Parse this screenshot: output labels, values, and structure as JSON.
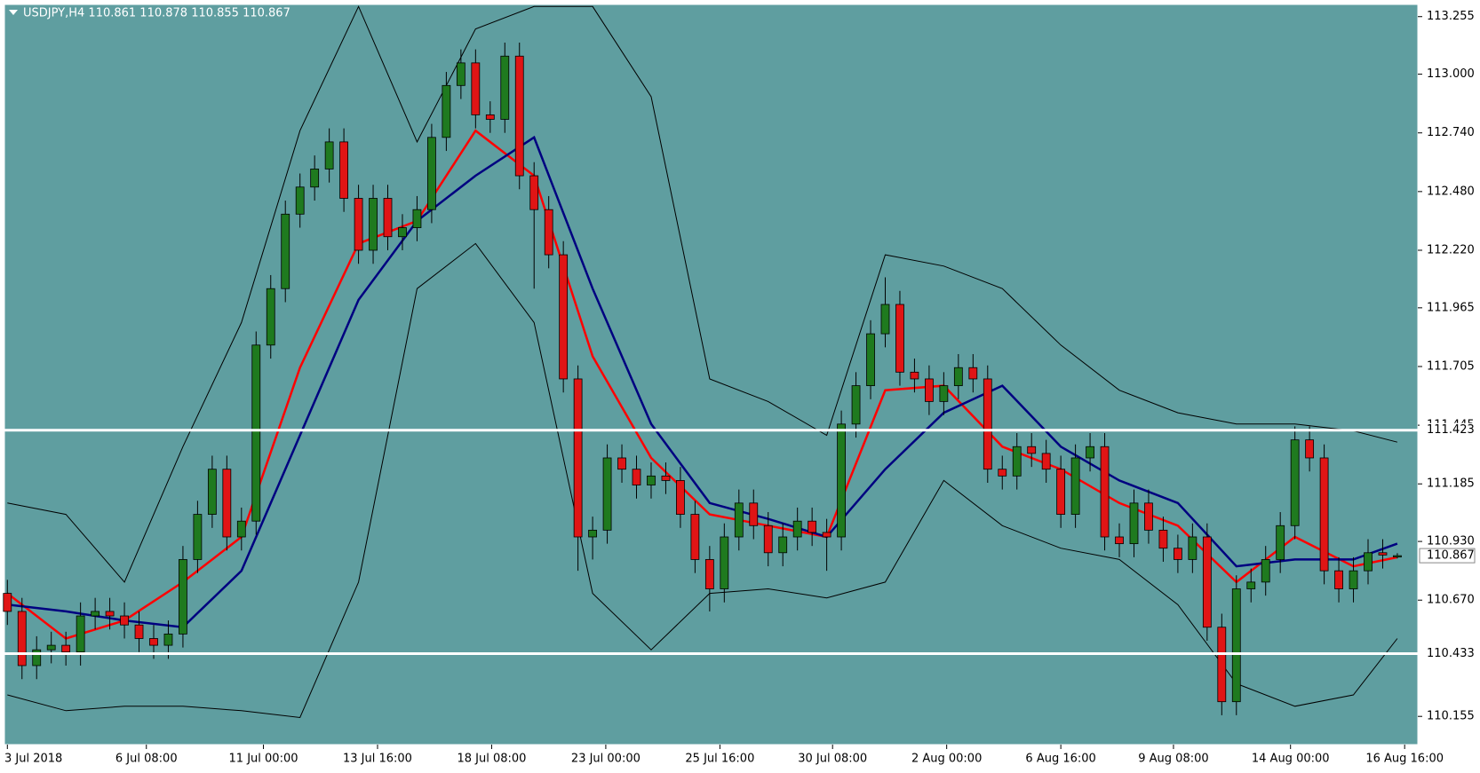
{
  "chart_data": {
    "type": "candlestick",
    "title": "USDJPY,H4  110.861 110.878 110.855 110.867",
    "open": [
      110.7,
      110.62,
      110.38,
      110.45,
      110.47,
      110.44,
      110.6,
      110.62,
      110.6,
      110.56,
      110.5,
      110.47,
      110.52,
      110.85,
      111.05,
      111.25,
      110.95,
      111.02,
      111.8,
      112.05,
      112.38,
      112.5,
      112.58,
      112.7,
      112.45,
      112.22,
      112.45,
      112.28,
      112.32,
      112.4,
      112.72,
      112.95,
      113.05,
      112.82,
      112.8,
      113.08,
      112.55,
      112.4,
      112.2,
      111.65,
      110.95,
      110.98,
      111.3,
      111.25,
      111.18,
      111.22,
      111.2,
      111.05,
      110.85,
      110.72,
      110.95,
      111.1,
      111.0,
      110.88,
      110.95,
      111.02,
      110.97,
      110.95,
      111.45,
      111.62,
      111.85,
      111.98,
      111.68,
      111.65,
      111.55,
      111.62,
      111.7,
      111.65,
      111.25,
      111.22,
      111.35,
      111.32,
      111.25,
      111.05,
      111.3,
      111.35,
      110.95,
      110.92,
      111.1,
      110.98,
      110.9,
      110.85,
      110.95,
      110.55,
      110.22,
      110.72,
      110.75,
      110.85,
      111.0,
      111.38,
      111.3,
      110.8,
      110.72,
      110.8,
      110.88,
      110.861
    ],
    "high": [
      110.76,
      110.68,
      110.51,
      110.53,
      110.53,
      110.66,
      110.68,
      110.68,
      110.66,
      110.62,
      110.56,
      110.58,
      110.91,
      111.11,
      111.31,
      111.31,
      111.08,
      111.86,
      112.11,
      112.44,
      112.56,
      112.64,
      112.76,
      112.76,
      112.51,
      112.51,
      112.51,
      112.38,
      112.46,
      112.78,
      113.01,
      113.11,
      113.11,
      112.88,
      113.14,
      113.14,
      112.61,
      112.46,
      112.26,
      111.71,
      111.04,
      111.36,
      111.36,
      111.31,
      111.28,
      111.28,
      111.26,
      111.11,
      110.91,
      111.01,
      111.16,
      111.16,
      111.06,
      111.01,
      111.08,
      111.08,
      111.03,
      111.51,
      111.68,
      111.91,
      112.1,
      112.04,
      111.74,
      111.71,
      111.68,
      111.76,
      111.76,
      111.71,
      111.31,
      111.41,
      111.41,
      111.38,
      111.31,
      111.36,
      111.41,
      111.41,
      111.01,
      111.16,
      111.16,
      111.04,
      110.96,
      111.01,
      111.01,
      110.61,
      110.78,
      110.81,
      110.91,
      111.06,
      111.44,
      111.44,
      111.36,
      110.86,
      110.86,
      110.94,
      110.94,
      110.878
    ],
    "low": [
      110.56,
      110.32,
      110.32,
      110.39,
      110.38,
      110.38,
      110.54,
      110.54,
      110.5,
      110.44,
      110.41,
      110.41,
      110.46,
      110.79,
      110.99,
      110.89,
      110.89,
      110.96,
      111.74,
      111.99,
      112.32,
      112.44,
      112.52,
      112.39,
      112.16,
      112.16,
      112.22,
      112.22,
      112.26,
      112.34,
      112.66,
      112.89,
      112.76,
      112.74,
      112.74,
      112.49,
      112.05,
      112.14,
      111.59,
      110.8,
      110.85,
      110.92,
      111.19,
      111.12,
      111.12,
      111.14,
      110.99,
      110.79,
      110.62,
      110.66,
      110.89,
      110.94,
      110.82,
      110.82,
      110.89,
      110.91,
      110.8,
      110.89,
      111.39,
      111.56,
      111.79,
      111.62,
      111.59,
      111.49,
      111.49,
      111.56,
      111.59,
      111.19,
      111.16,
      111.16,
      111.26,
      111.19,
      110.99,
      110.99,
      111.24,
      110.89,
      110.86,
      110.86,
      110.92,
      110.84,
      110.79,
      110.79,
      110.49,
      110.16,
      110.16,
      110.66,
      110.69,
      110.79,
      110.94,
      111.24,
      110.74,
      110.66,
      110.66,
      110.74,
      110.81,
      110.855
    ],
    "close": [
      110.62,
      110.38,
      110.45,
      110.47,
      110.44,
      110.6,
      110.62,
      110.6,
      110.56,
      110.5,
      110.47,
      110.52,
      110.85,
      111.05,
      111.25,
      110.95,
      111.02,
      111.8,
      112.05,
      112.38,
      112.5,
      112.58,
      112.7,
      112.45,
      112.22,
      112.45,
      112.28,
      112.32,
      112.4,
      112.72,
      112.95,
      113.05,
      112.82,
      112.8,
      113.08,
      112.55,
      112.4,
      112.2,
      111.65,
      110.95,
      110.98,
      111.3,
      111.25,
      111.18,
      111.22,
      111.2,
      111.05,
      110.85,
      110.72,
      110.95,
      111.1,
      111.0,
      110.88,
      110.95,
      111.02,
      110.97,
      110.95,
      111.45,
      111.62,
      111.85,
      111.98,
      111.68,
      111.65,
      111.55,
      111.62,
      111.7,
      111.65,
      111.25,
      111.22,
      111.35,
      111.32,
      111.25,
      111.05,
      111.3,
      111.35,
      110.95,
      110.92,
      111.1,
      110.98,
      110.9,
      110.85,
      110.95,
      110.55,
      110.22,
      110.72,
      110.75,
      110.85,
      111.0,
      111.38,
      111.3,
      110.8,
      110.72,
      110.8,
      110.88,
      110.87,
      110.867
    ],
    "up_color": "#1f7a1f",
    "down_color": "#e01515",
    "background": "#5f9ea0",
    "line_x": [
      0,
      4,
      8,
      12,
      16,
      20,
      24,
      28,
      32,
      36,
      40,
      44,
      48,
      52,
      56,
      60,
      64,
      68,
      72,
      76,
      80,
      84,
      88,
      92,
      95
    ],
    "lines": [
      {
        "color": "#ff0000",
        "values": [
          110.7,
          110.5,
          110.58,
          110.75,
          110.95,
          111.7,
          112.25,
          112.35,
          112.75,
          112.55,
          111.75,
          111.3,
          111.05,
          111.0,
          110.95,
          111.6,
          111.62,
          111.35,
          111.25,
          111.1,
          111.0,
          110.75,
          110.95,
          110.82,
          110.86
        ]
      },
      {
        "color": "#000080",
        "values": [
          110.65,
          110.62,
          110.58,
          110.55,
          110.8,
          111.4,
          112.0,
          112.35,
          112.55,
          112.72,
          112.05,
          111.45,
          111.1,
          111.03,
          110.95,
          111.25,
          111.5,
          111.62,
          111.35,
          111.2,
          111.1,
          110.82,
          110.85,
          110.85,
          110.92
        ]
      },
      {
        "color": "#000000",
        "values": [
          111.1,
          111.05,
          110.75,
          111.35,
          111.9,
          112.75,
          113.3,
          112.7,
          113.2,
          113.3,
          113.3,
          112.9,
          111.65,
          111.55,
          111.4,
          112.2,
          112.15,
          112.05,
          111.8,
          111.6,
          111.5,
          111.45,
          111.45,
          111.42,
          111.37
        ]
      },
      {
        "color": "#000000",
        "values": [
          110.25,
          110.18,
          110.2,
          110.2,
          110.18,
          110.15,
          110.75,
          112.05,
          112.25,
          111.9,
          110.7,
          110.45,
          110.7,
          110.72,
          110.68,
          110.75,
          111.2,
          111.0,
          110.9,
          110.85,
          110.65,
          110.3,
          110.2,
          110.25,
          110.5
        ]
      }
    ],
    "hlines": [
      111.423,
      110.433
    ],
    "last_price": 110.867,
    "xlim": [
      -0.2,
      96.4
    ],
    "ylim": [
      110.03,
      113.309
    ],
    "yticks": [
      113.255,
      {
        "value": 113.0,
        "label": "113.000"
      },
      {
        "value": 112.74,
        "label": "112.740"
      },
      {
        "value": 112.48,
        "label": "112.480"
      },
      {
        "value": 112.22,
        "label": "112.220"
      },
      111.965,
      111.705,
      111.445,
      111.185,
      {
        "value": 110.93,
        "label": "110.930"
      },
      {
        "value": 110.67,
        "label": "110.670"
      },
      110.155
    ],
    "xticks": [
      {
        "value": 0,
        "label": "3 Jul 2018"
      },
      {
        "value": 9.5,
        "label": "6 Jul 08:00"
      },
      {
        "value": 17.5,
        "label": "11 Jul 00:00"
      },
      {
        "value": 25.3,
        "label": "13 Jul 16:00"
      },
      {
        "value": 33.1,
        "label": "18 Jul 08:00"
      },
      {
        "value": 40.9,
        "label": "23 Jul 00:00"
      },
      {
        "value": 48.7,
        "label": "25 Jul 16:00"
      },
      {
        "value": 56.4,
        "label": "30 Jul 08:00"
      },
      {
        "value": 64.2,
        "label": "2 Aug 00:00"
      },
      {
        "value": 72,
        "label": "6 Aug 16:00"
      },
      {
        "value": 79.7,
        "label": "9 Aug 08:00"
      },
      {
        "value": 87.7,
        "label": "14 Aug 00:00"
      },
      {
        "value": 95.5,
        "label": "16 Aug 16:00"
      }
    ]
  }
}
